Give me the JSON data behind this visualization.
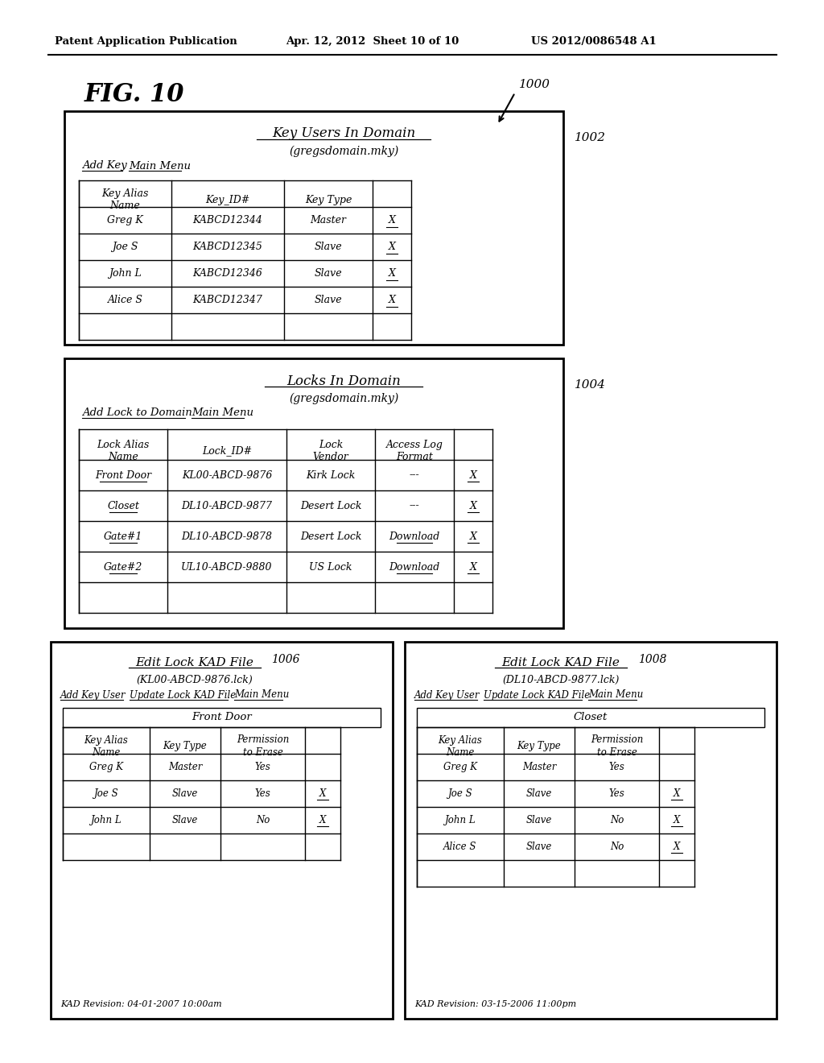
{
  "bg_color": "#ffffff",
  "header_text": "Patent Application Publication",
  "header_date": "Apr. 12, 2012  Sheet 10 of 10",
  "header_patent": "US 2012/0086548 A1",
  "fig_label": "FIG. 10",
  "ref_1000": "1000",
  "box1": {
    "ref": "1002",
    "title": "Key Users In Domain",
    "subtitle": "(gregsdomain.mky)",
    "col_headers": [
      "Key Alias\nName",
      "Key_ID#",
      "Key Type",
      ""
    ],
    "rows": [
      [
        "Greg K",
        "KABCD12344",
        "Master",
        "X"
      ],
      [
        "Joe S",
        "KABCD12345",
        "Slave",
        "X"
      ],
      [
        "John L",
        "KABCD12346",
        "Slave",
        "X"
      ],
      [
        "Alice S",
        "KABCD12347",
        "Slave",
        "X"
      ],
      [
        "",
        "",
        "",
        ""
      ]
    ]
  },
  "box2": {
    "ref": "1004",
    "title": "Locks In Domain",
    "subtitle": "(gregsdomain.mky)",
    "col_headers": [
      "Lock Alias\nName",
      "Lock_ID#",
      "Lock\nVendor",
      "Access Log\nFormat",
      ""
    ],
    "rows": [
      [
        "Front Door",
        "KL00-ABCD-9876",
        "Kirk Lock",
        "---",
        "X"
      ],
      [
        "Closet",
        "DL10-ABCD-9877",
        "Desert Lock",
        "---",
        "X"
      ],
      [
        "Gate#1",
        "DL10-ABCD-9878",
        "Desert Lock",
        "Download",
        "X"
      ],
      [
        "Gate#2",
        "UL10-ABCD-9880",
        "US Lock",
        "Download",
        "X"
      ],
      [
        "",
        "",
        "",
        "",
        ""
      ]
    ]
  },
  "box3": {
    "ref": "1006",
    "title": "Edit Lock KAD File",
    "subtitle": "(KL00-ABCD-9876.lck)",
    "inner_title": "Front Door",
    "col_headers": [
      "Key Alias\nName",
      "Key Type",
      "Permission\nto Erase",
      ""
    ],
    "rows": [
      [
        "Greg K",
        "Master",
        "Yes",
        ""
      ],
      [
        "Joe S",
        "Slave",
        "Yes",
        "X"
      ],
      [
        "John L",
        "Slave",
        "No",
        "X"
      ],
      [
        "",
        "",
        "",
        ""
      ]
    ],
    "footer": "KAD Revision: 04-01-2007 10:00am"
  },
  "box4": {
    "ref": "1008",
    "title": "Edit Lock KAD File",
    "subtitle": "(DL10-ABCD-9877.lck)",
    "inner_title": "Closet",
    "col_headers": [
      "Key Alias\nName",
      "Key Type",
      "Permission\nto Erase",
      ""
    ],
    "rows": [
      [
        "Greg K",
        "Master",
        "Yes",
        ""
      ],
      [
        "Joe S",
        "Slave",
        "Yes",
        "X"
      ],
      [
        "John L",
        "Slave",
        "No",
        "X"
      ],
      [
        "Alice S",
        "Slave",
        "No",
        "X"
      ],
      [
        "",
        "",
        "",
        ""
      ]
    ],
    "footer": "KAD Revision: 03-15-2006 11:00pm"
  }
}
